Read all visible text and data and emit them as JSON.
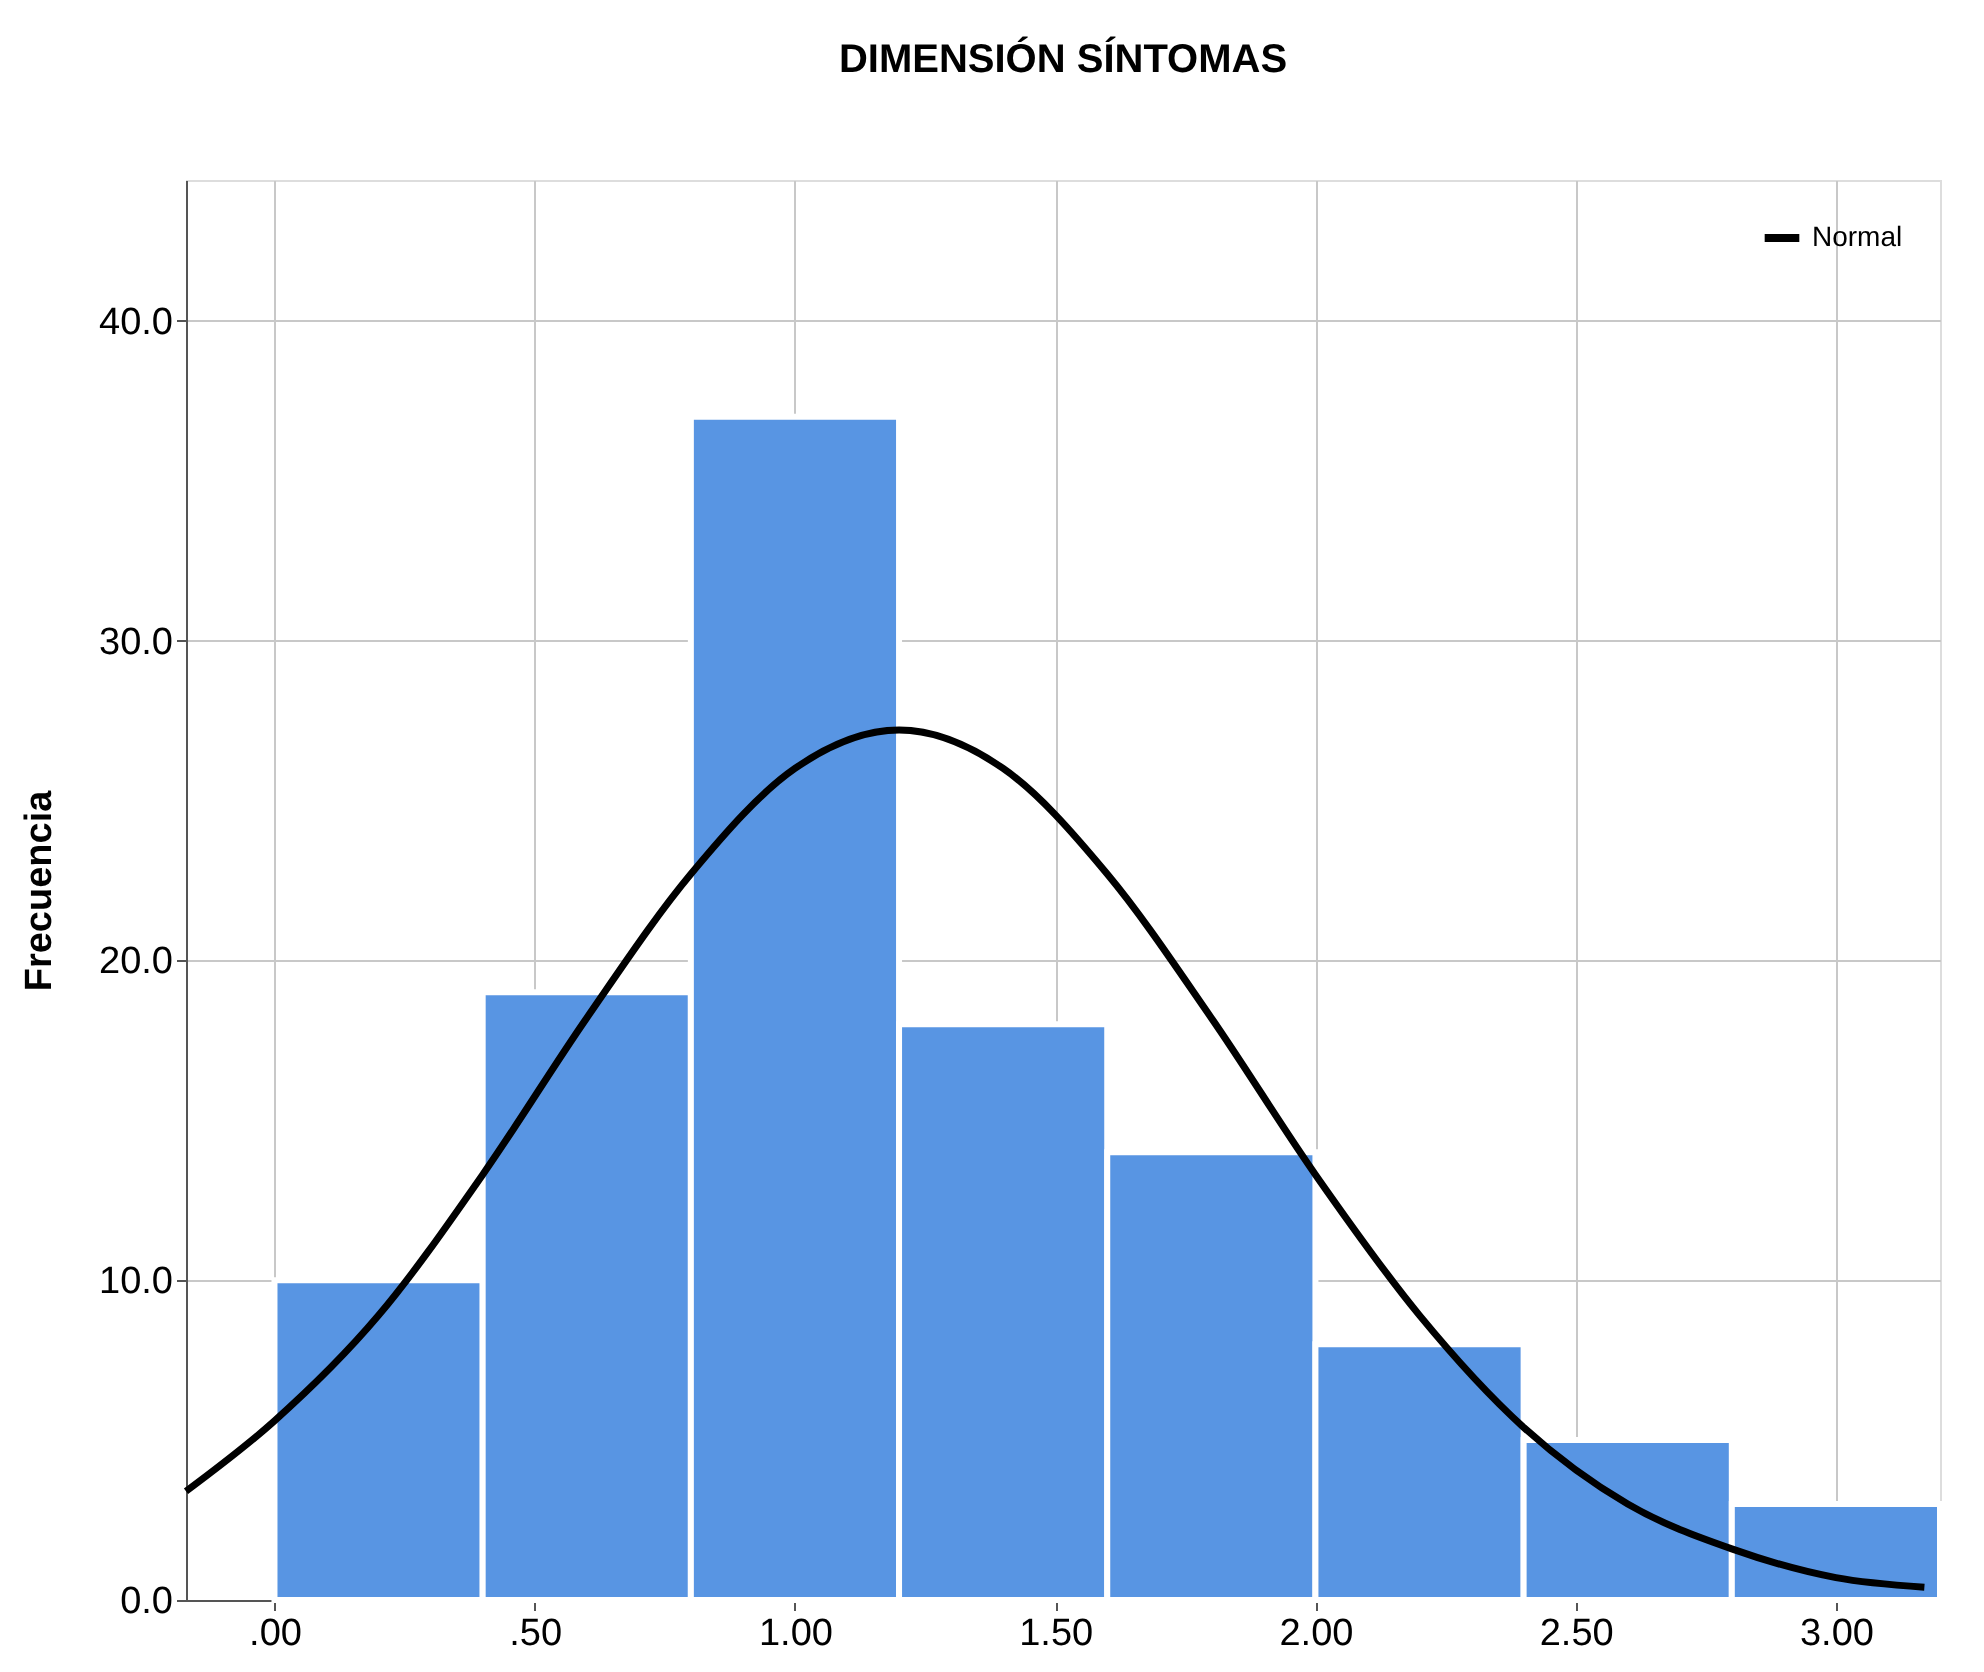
{
  "chart_data": {
    "type": "histogram",
    "title": "DIMENSIÓN SÍNTOMAS",
    "ylabel": "Frecuencia",
    "bins": [
      0,
      0.4,
      0.8,
      1.2,
      1.6,
      2.0,
      2.4,
      2.8,
      3.2
    ],
    "values": [
      10,
      19,
      37,
      18,
      14,
      8,
      5,
      3
    ],
    "color": "#5895e3",
    "series": [
      {
        "name": "Normal",
        "type": "line",
        "color": "#000000",
        "x": [
          -0.17,
          0,
          0.2,
          0.4,
          0.6,
          0.8,
          1.0,
          1.2,
          1.4,
          1.6,
          1.8,
          2.0,
          2.2,
          2.4,
          2.6,
          2.8,
          3.0,
          3.17
        ],
        "values": [
          3.4,
          5.6,
          8.9,
          13.3,
          18.2,
          22.7,
          26.0,
          27.2,
          26.0,
          22.7,
          18.2,
          13.3,
          8.9,
          5.4,
          3.0,
          1.6,
          0.7,
          0.4
        ]
      }
    ],
    "xlim": [
      -0.17,
      3.2
    ],
    "ylim": [
      0,
      44.4
    ],
    "xticks": [
      {
        "value": 0,
        "label": ".00"
      },
      {
        "value": 0.5,
        "label": ".50"
      },
      {
        "value": 1.0,
        "label": "1.00"
      },
      {
        "value": 1.5,
        "label": "1.50"
      },
      {
        "value": 2.0,
        "label": "2.00"
      },
      {
        "value": 2.5,
        "label": "2.50"
      },
      {
        "value": 3.0,
        "label": "3.00"
      }
    ],
    "yticks": [
      {
        "value": 0,
        "label": "0.0"
      },
      {
        "value": 10,
        "label": "10.0"
      },
      {
        "value": 20,
        "label": "20.0"
      },
      {
        "value": 30,
        "label": "30.0"
      },
      {
        "value": 40,
        "label": "40.0"
      }
    ],
    "grid": true,
    "legend": "top right"
  }
}
